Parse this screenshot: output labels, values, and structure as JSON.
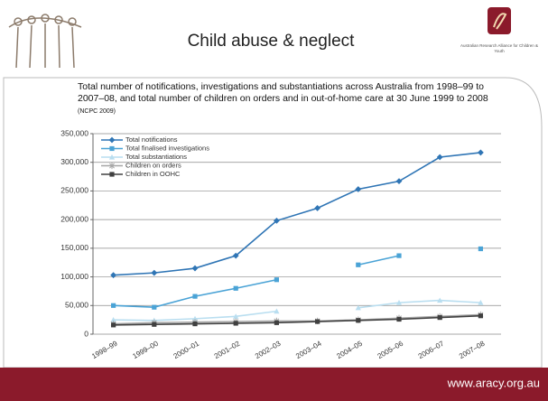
{
  "slide": {
    "title": "Child abuse & neglect",
    "subtitle": "Total number of notifications, investigations and substantiations across Australia from 1998–99 to 2007–08, and total number of children on orders and in out-of-home care at 30 June 1999 to 2008",
    "source": "(NCPC 2009)",
    "logo_text": "Australian Research Alliance for Children & Youth",
    "footer": "www.aracy.org.au"
  },
  "chart_data": {
    "type": "line",
    "categories": [
      "1998–99",
      "1999–00",
      "2000–01",
      "2001–02",
      "2002–03",
      "2003–04",
      "2004–05",
      "2005–06",
      "2006–07",
      "2007–08"
    ],
    "series": [
      {
        "name": "Total notifications",
        "color": "#2f75b5",
        "marker": "diamond",
        "values": [
          103000,
          107000,
          115000,
          137000,
          198000,
          220000,
          253000,
          267000,
          309000,
          317000
        ]
      },
      {
        "name": "Total finalised investigations",
        "color": "#4aa3d6",
        "marker": "square",
        "values": [
          50000,
          47000,
          66000,
          80000,
          95000,
          null,
          121000,
          137000,
          null,
          149000
        ]
      },
      {
        "name": "Total substantiations",
        "color": "#b9def0",
        "marker": "triangle",
        "values": [
          25000,
          24000,
          27000,
          31000,
          40000,
          null,
          46000,
          55000,
          59000,
          55000
        ]
      },
      {
        "name": "Children on orders",
        "color": "#a6a6a6",
        "marker": "cross",
        "values": [
          18000,
          20000,
          21000,
          22000,
          23000,
          23000,
          25000,
          28000,
          31000,
          34000
        ]
      },
      {
        "name": "Children in OOHC",
        "color": "#404040",
        "marker": "square",
        "values": [
          16000,
          17000,
          18000,
          19000,
          20000,
          22000,
          24000,
          26000,
          29000,
          32000
        ]
      }
    ],
    "ylim": [
      0,
      350000
    ],
    "yticks": [
      0,
      {
        "value": 50000,
        "label": "50,000"
      },
      {
        "value": 100000,
        "label": "100,000"
      },
      {
        "value": 150000,
        "label": "150,000"
      },
      {
        "value": 200000,
        "label": "200,000"
      },
      {
        "value": 250000,
        "label": "250,000"
      },
      {
        "value": 300000,
        "label": "300,000"
      },
      {
        "value": 350000,
        "label": "350,000"
      }
    ],
    "grid": true,
    "legend": "top-left"
  }
}
